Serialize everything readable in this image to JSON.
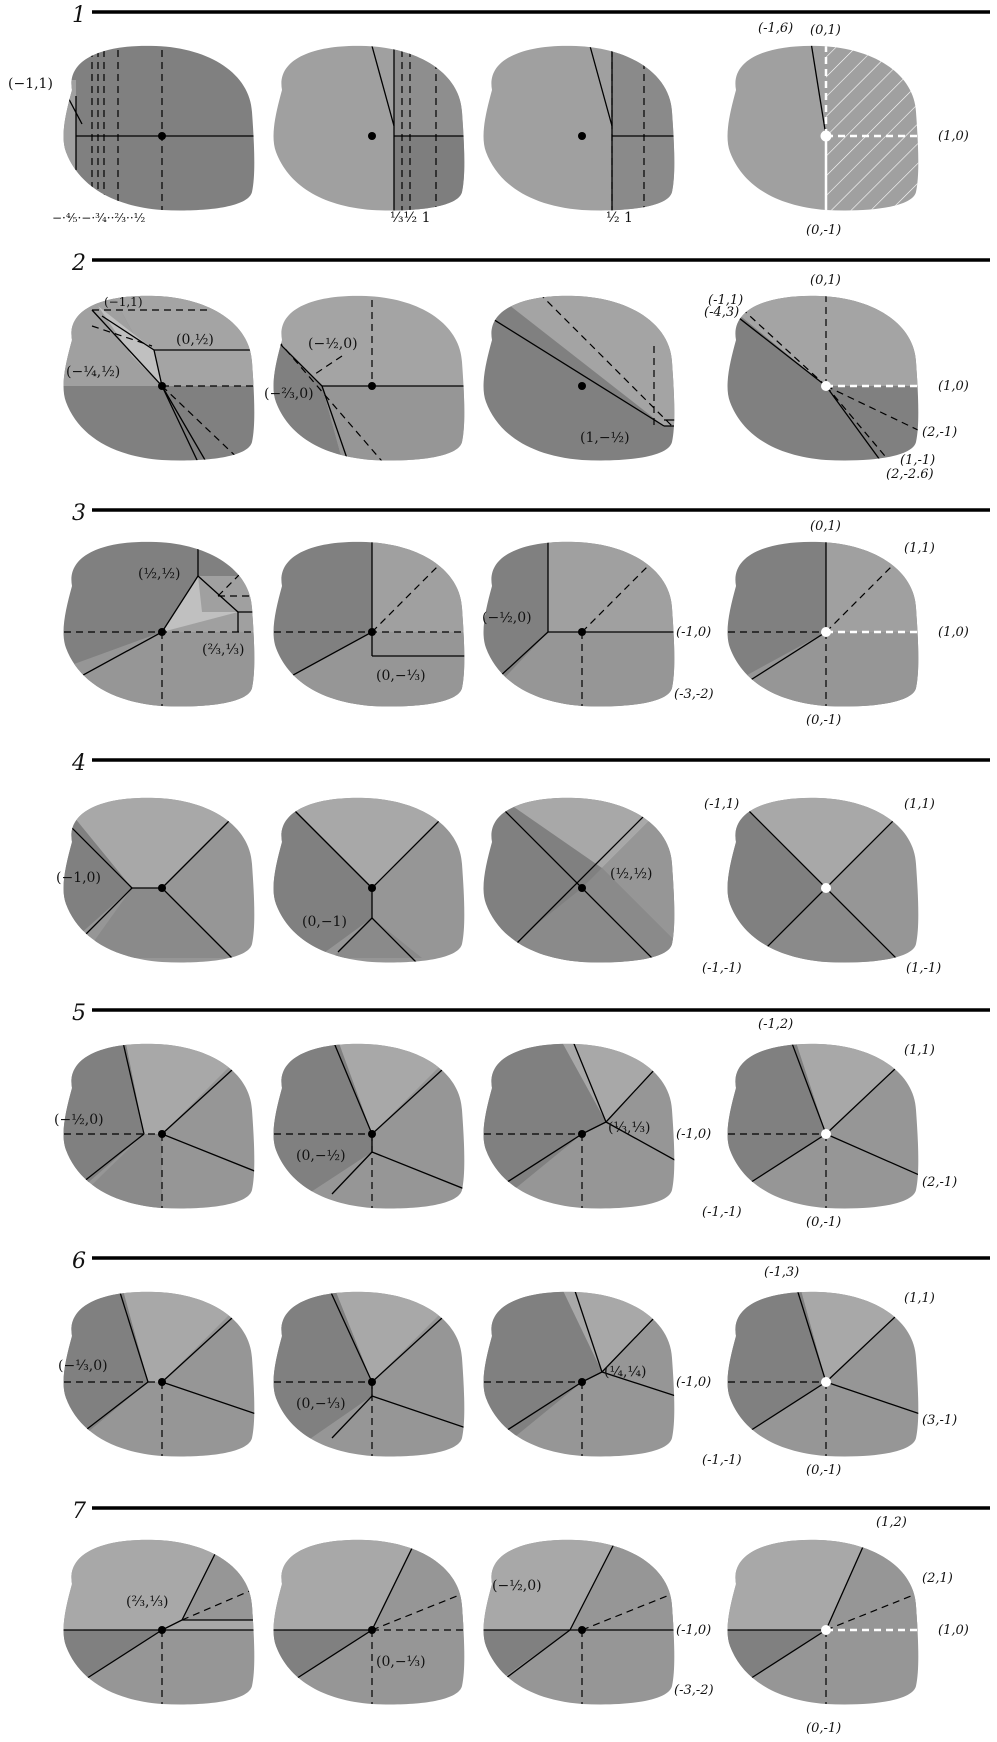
{
  "rows": [
    {
      "number": "1",
      "labels": {
        "p1": "(−1,1)",
        "ticks1": "−·⁴⁄₅·−·³⁄₄··²⁄₃··¹⁄₂",
        "ticks2": "¹⁄₃¹⁄₂  1",
        "ticks3": "¹⁄₂   1",
        "r1": "(-1,6)",
        "r2": "(0,1)",
        "r3": "(1,0)",
        "r4": "(0,-1)"
      }
    },
    {
      "number": "2",
      "labels": {
        "a1": "(−1,1)",
        "a2": "(0,½)",
        "a3": "(−¼,½)",
        "b1": "(−½,0)",
        "b2": "(−⅔,0)",
        "c1": "(1,−½)",
        "r1": "(0,1)",
        "r2": "(-1,1)",
        "r3": "(-4,3)",
        "r4": "(1,0)",
        "r5": "(2,-1)",
        "r6": "(1,-1)",
        "r7": "(2,-2.6)"
      }
    },
    {
      "number": "3",
      "labels": {
        "a1": "(½,½)",
        "a2": "(⅔,⅓)",
        "b1": "(0,−⅓)",
        "c1": "(−½,0)",
        "r1": "(0,1)",
        "r2": "(1,1)",
        "r3": "(-1,0)",
        "r4": "(1,0)",
        "r5": "(-3,-2)",
        "r6": "(0,-1)"
      }
    },
    {
      "number": "4",
      "labels": {
        "a1": "(−1,0)",
        "b1": "(0,−1)",
        "c1": "(½,½)",
        "r1": "(-1,1)",
        "r2": "(1,1)",
        "r3": "(-1,-1)",
        "r4": "(1,-1)"
      }
    },
    {
      "number": "5",
      "labels": {
        "a1": "(−½,0)",
        "b1": "(0,−½)",
        "c1": "(⅓,⅓)",
        "r1": "(-1,2)",
        "r2": "(1,1)",
        "r3": "(-1,0)",
        "r4": "(2,-1)",
        "r5": "(-1,-1)",
        "r6": "(0,-1)"
      }
    },
    {
      "number": "6",
      "labels": {
        "a1": "(−⅓,0)",
        "b1": "(0,−⅓)",
        "c1": "(¼,¼)",
        "r1": "(-1,3)",
        "r2": "(1,1)",
        "r3": "(-1,0)",
        "r4": "(3,-1)",
        "r5": "(-1,-1)",
        "r6": "(0,-1)"
      }
    },
    {
      "number": "7",
      "labels": {
        "a1": "(⅔,⅓)",
        "b1": "(0,−⅓)",
        "c1": "(−½,0)",
        "r1": "(1,2)",
        "r2": "(2,1)",
        "r3": "(-1,0)",
        "r4": "(1,0)",
        "r5": "(-3,-2)",
        "r6": "(0,-1)"
      }
    }
  ],
  "colors": {
    "light": "#a8a8a8",
    "mid": "#969696",
    "dark": "#7d7d7d",
    "darker": "#6e6e6e",
    "lightest": "#c4c4c4"
  }
}
